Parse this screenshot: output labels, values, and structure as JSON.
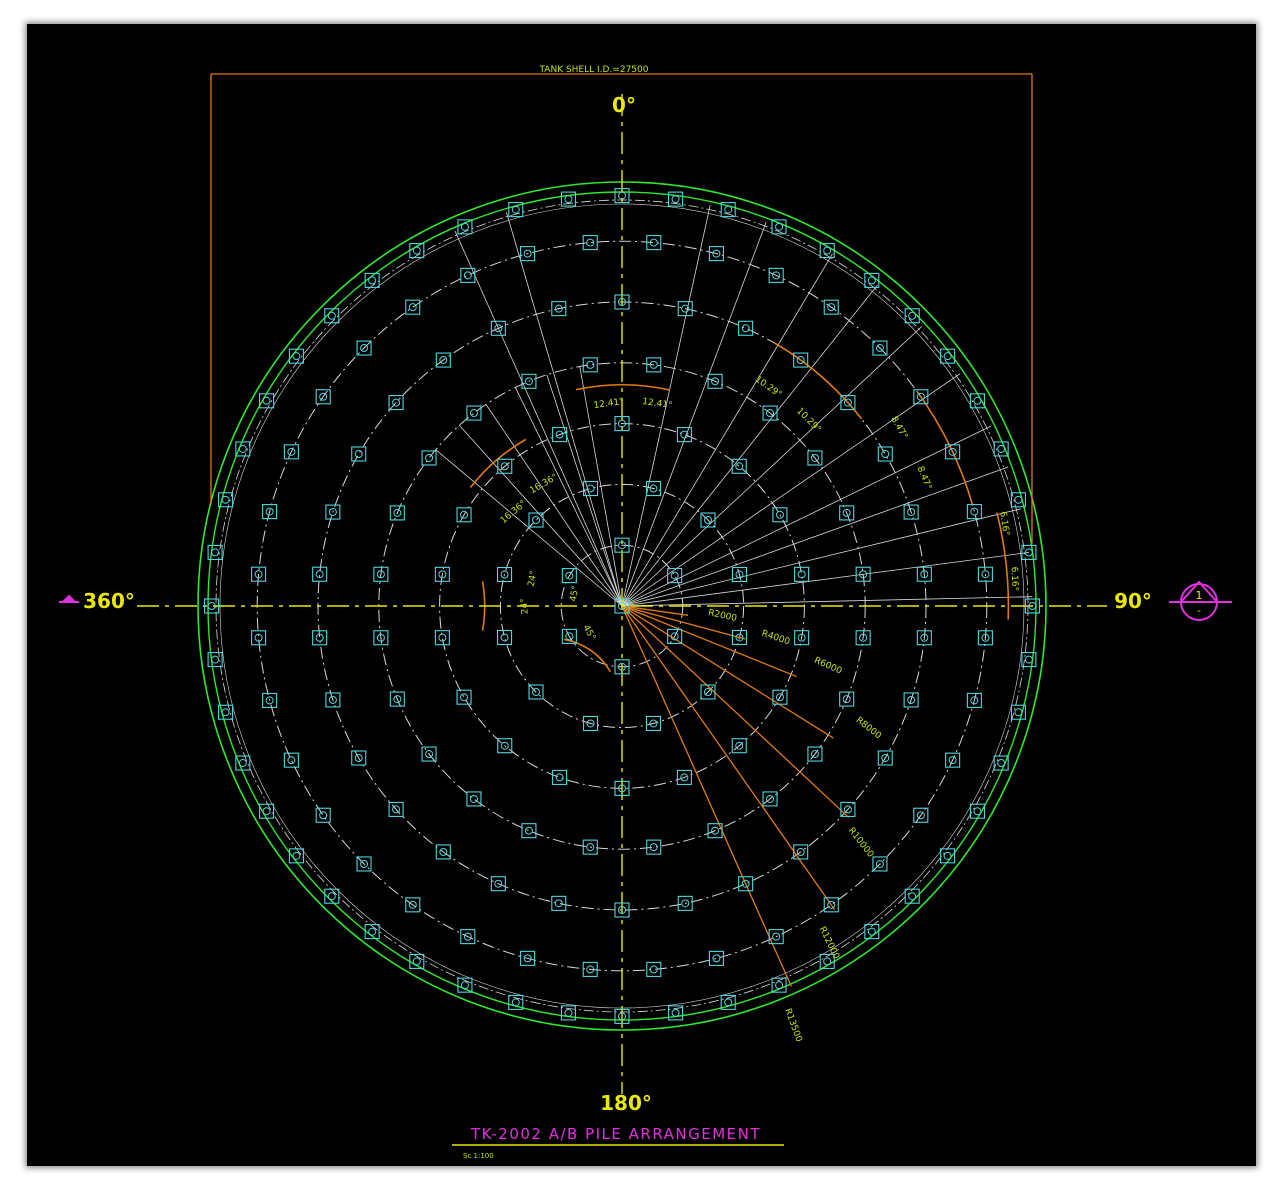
{
  "drawing": {
    "dimension_top": "TANK SHELL I.D.=27500",
    "angle_top": "0°",
    "angle_bottom": "180°",
    "angle_left": "360°",
    "angle_right": "90°",
    "section_marker": "1",
    "section_marker_sub": "-",
    "title": "TK-2002 A/B PILE ARRANGEMENT",
    "scale": "Sc 1:100",
    "ring_radii": [
      "R2000",
      "R4000",
      "R6000",
      "R8000",
      "R10000",
      "R12000",
      "R13500"
    ],
    "angle_labels": [
      "12.41°",
      "12.41°",
      "10.29°",
      "10.29°",
      "8.47°",
      "8.47°",
      "16.36°",
      "16.36°",
      "24°",
      "24°",
      "6.16°",
      "6.16°",
      "45°",
      "45°"
    ],
    "pile_counts_per_ring": [
      6,
      12,
      18,
      24,
      30,
      36,
      48,
      58
    ],
    "colors": {
      "background": "#000000",
      "pile": "#4fd6e0",
      "centerline": "#e8e800",
      "ring": "#d8d8d8",
      "shell": "#2ee82e",
      "dimension": "#e07a12",
      "text": "#e8e800",
      "marker": "#e030e0"
    }
  }
}
